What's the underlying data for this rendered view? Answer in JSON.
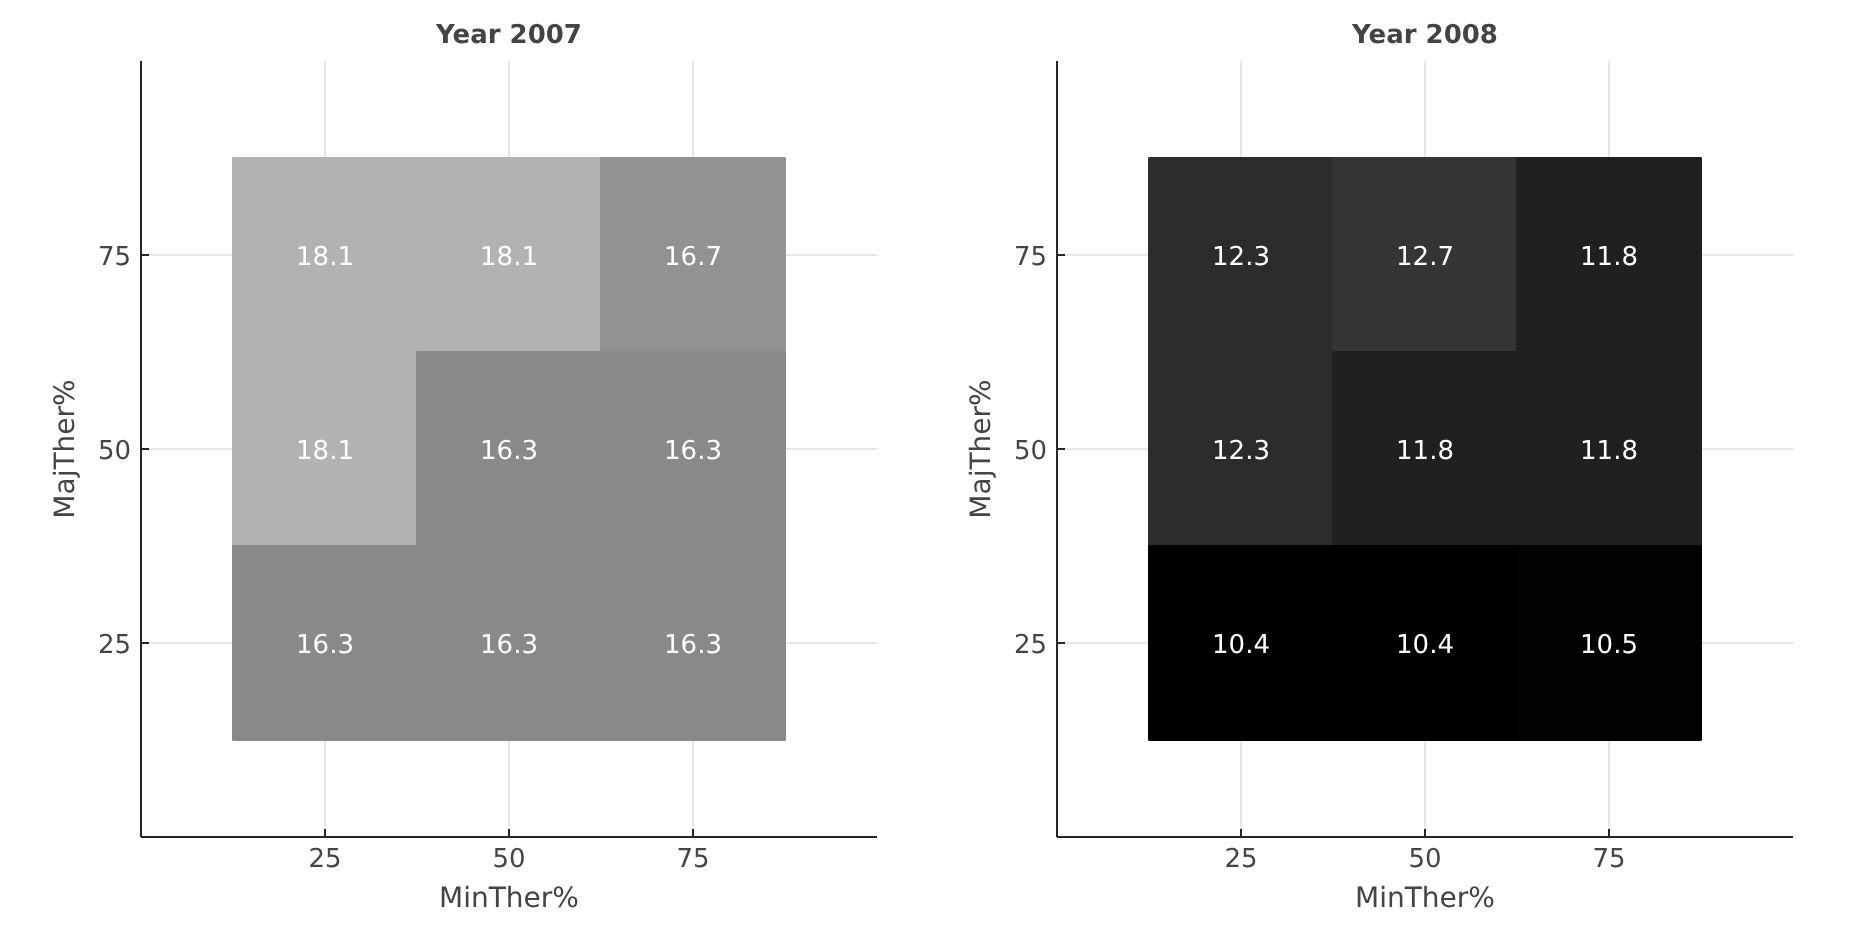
{
  "chart_data": [
    {
      "type": "heatmap",
      "title": "Year 2007",
      "xlabel": "MinTher%",
      "ylabel": "MajTher%",
      "categories": [
        "25",
        "50",
        "75"
      ],
      "y_categories": [
        "75",
        "50",
        "25"
      ],
      "grid": true,
      "data_labels": true,
      "cells": [
        [
          18.1,
          18.1,
          16.7
        ],
        [
          18.1,
          16.3,
          16.3
        ],
        [
          16.3,
          16.3,
          16.3
        ]
      ]
    },
    {
      "type": "heatmap",
      "title": "Year 2008",
      "xlabel": "MinTher%",
      "ylabel": "MajTher%",
      "categories": [
        "25",
        "50",
        "75"
      ],
      "y_categories": [
        "75",
        "50",
        "25"
      ],
      "grid": true,
      "data_labels": true,
      "cells": [
        [
          12.3,
          12.7,
          11.8
        ],
        [
          12.3,
          11.8,
          11.8
        ],
        [
          10.4,
          10.4,
          10.5
        ]
      ]
    }
  ]
}
